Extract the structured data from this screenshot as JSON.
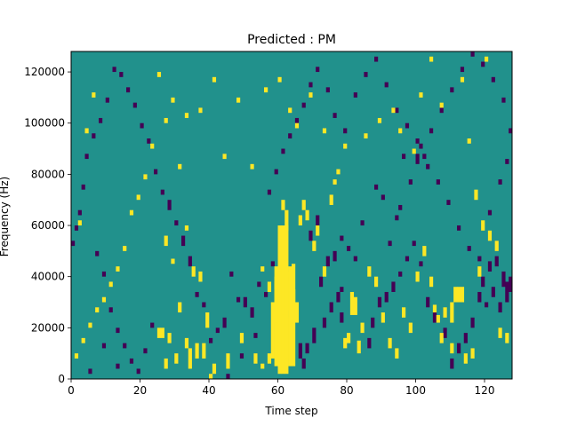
{
  "chart_data": {
    "type": "heatmap",
    "title": "Predicted : PM",
    "xlabel": "Time step",
    "ylabel": "Frequency (Hz)",
    "xlim": [
      0,
      128
    ],
    "ylim": [
      0,
      128000
    ],
    "x_ticks": [
      0,
      20,
      40,
      60,
      80,
      100,
      120
    ],
    "y_ticks": [
      0,
      20000,
      40000,
      60000,
      80000,
      100000,
      120000
    ],
    "n_time_steps": 128,
    "n_freq_bins": 128,
    "values_note": "three-level spectrogram: -1 (dark purple), 0 (teal background), 1 (yellow)",
    "colors": {
      "low": "#440154",
      "mid": "#21918c",
      "high": "#fde725"
    },
    "cells": {
      "high": [
        [
          60,
          2,
          60
        ],
        [
          61,
          2,
          60
        ],
        [
          62,
          2,
          60
        ],
        [
          59,
          5,
          44
        ],
        [
          63,
          5,
          42
        ],
        [
          64,
          5,
          35
        ],
        [
          58,
          8,
          30
        ],
        [
          62,
          8,
          24
        ],
        [
          59,
          22,
          38
        ],
        [
          61,
          25,
          48
        ],
        [
          63,
          27,
          44
        ],
        [
          65,
          22,
          30
        ],
        [
          64,
          30,
          45
        ],
        [
          60,
          42,
          52
        ],
        [
          62,
          58,
          66
        ],
        [
          61,
          66,
          70
        ],
        [
          59,
          35,
          40
        ],
        [
          111,
          30,
          36
        ],
        [
          112,
          30,
          36
        ],
        [
          113,
          30,
          36
        ],
        [
          110,
          22,
          30
        ],
        [
          108,
          24,
          28
        ],
        [
          106,
          22,
          25
        ],
        [
          105,
          26,
          29
        ],
        [
          81,
          25,
          34
        ],
        [
          82,
          25,
          32
        ],
        [
          80,
          14,
          18
        ],
        [
          84,
          18,
          22
        ],
        [
          83,
          10,
          15
        ],
        [
          79,
          12,
          16
        ],
        [
          25,
          16,
          20
        ],
        [
          26,
          16,
          20
        ],
        [
          28,
          14,
          18
        ],
        [
          27,
          4,
          8
        ],
        [
          30,
          6,
          10
        ],
        [
          33,
          12,
          16
        ],
        [
          34,
          4,
          12
        ],
        [
          36,
          8,
          14
        ],
        [
          31,
          26,
          30
        ],
        [
          38,
          8,
          14
        ],
        [
          39,
          20,
          26
        ],
        [
          35,
          40,
          44
        ],
        [
          37,
          38,
          42
        ],
        [
          29,
          45,
          47
        ],
        [
          33,
          58,
          60
        ],
        [
          27,
          52,
          56
        ],
        [
          40,
          0,
          2
        ],
        [
          41,
          2,
          6
        ],
        [
          45,
          4,
          10
        ],
        [
          49,
          14,
          18
        ],
        [
          53,
          6,
          10
        ],
        [
          55,
          42,
          44
        ],
        [
          57,
          34,
          38
        ],
        [
          55,
          4,
          6
        ],
        [
          57,
          6,
          10
        ],
        [
          66,
          60,
          64
        ],
        [
          67,
          66,
          70
        ],
        [
          68,
          62,
          66
        ],
        [
          70,
          50,
          54
        ],
        [
          71,
          56,
          60
        ],
        [
          73,
          40,
          44
        ],
        [
          75,
          68,
          72
        ],
        [
          77,
          80,
          82
        ],
        [
          86,
          40,
          44
        ],
        [
          88,
          36,
          40
        ],
        [
          90,
          22,
          26
        ],
        [
          92,
          12,
          16
        ],
        [
          94,
          8,
          12
        ],
        [
          96,
          24,
          28
        ],
        [
          98,
          18,
          22
        ],
        [
          100,
          38,
          42
        ],
        [
          102,
          48,
          52
        ],
        [
          104,
          36,
          40
        ],
        [
          107,
          14,
          18
        ],
        [
          110,
          10,
          14
        ],
        [
          114,
          6,
          10
        ],
        [
          116,
          8,
          12
        ],
        [
          118,
          40,
          44
        ],
        [
          119,
          58,
          62
        ],
        [
          121,
          54,
          58
        ],
        [
          123,
          50,
          54
        ],
        [
          124,
          16,
          20
        ],
        [
          126,
          14,
          18
        ],
        [
          117,
          70,
          74
        ],
        [
          115,
          92,
          94
        ],
        [
          113,
          116,
          118
        ],
        [
          120,
          124,
          126
        ],
        [
          104,
          124,
          126
        ],
        [
          107,
          106,
          108
        ],
        [
          101,
          110,
          112
        ],
        [
          99,
          88,
          90
        ],
        [
          95,
          96,
          98
        ],
        [
          93,
          104,
          106
        ],
        [
          89,
          100,
          102
        ],
        [
          85,
          94,
          96
        ],
        [
          79,
          90,
          92
        ],
        [
          76,
          76,
          78
        ],
        [
          73,
          96,
          98
        ],
        [
          69,
          110,
          112
        ],
        [
          65,
          98,
          100
        ],
        [
          63,
          104,
          106
        ],
        [
          60,
          116,
          118
        ],
        [
          56,
          112,
          114
        ],
        [
          52,
          82,
          84
        ],
        [
          48,
          108,
          110
        ],
        [
          44,
          86,
          88
        ],
        [
          41,
          116,
          118
        ],
        [
          37,
          104,
          106
        ],
        [
          33,
          102,
          104
        ],
        [
          31,
          82,
          84
        ],
        [
          29,
          108,
          110
        ],
        [
          27,
          100,
          102
        ],
        [
          25,
          118,
          120
        ],
        [
          23,
          90,
          92
        ],
        [
          21,
          78,
          80
        ],
        [
          19,
          70,
          72
        ],
        [
          17,
          64,
          66
        ],
        [
          15,
          50,
          52
        ],
        [
          13,
          42,
          44
        ],
        [
          11,
          36,
          38
        ],
        [
          9,
          30,
          32
        ],
        [
          7,
          26,
          28
        ],
        [
          5,
          20,
          22
        ],
        [
          3,
          14,
          16
        ],
        [
          1,
          8,
          10
        ],
        [
          6,
          110,
          112
        ],
        [
          4,
          96,
          98
        ],
        [
          2,
          60,
          62
        ]
      ],
      "low": [
        [
          66,
          8,
          14
        ],
        [
          67,
          4,
          8
        ],
        [
          68,
          10,
          14
        ],
        [
          70,
          14,
          20
        ],
        [
          73,
          20,
          24
        ],
        [
          75,
          26,
          30
        ],
        [
          77,
          30,
          34
        ],
        [
          78,
          22,
          26
        ],
        [
          72,
          36,
          40
        ],
        [
          74,
          44,
          48
        ],
        [
          76,
          46,
          50
        ],
        [
          78,
          54,
          56
        ],
        [
          69,
          54,
          58
        ],
        [
          71,
          60,
          64
        ],
        [
          86,
          12,
          16
        ],
        [
          87,
          20,
          24
        ],
        [
          89,
          28,
          32
        ],
        [
          91,
          30,
          34
        ],
        [
          93,
          34,
          38
        ],
        [
          95,
          40,
          42
        ],
        [
          97,
          46,
          48
        ],
        [
          99,
          52,
          54
        ],
        [
          101,
          44,
          46
        ],
        [
          103,
          28,
          32
        ],
        [
          105,
          22,
          26
        ],
        [
          108,
          16,
          20
        ],
        [
          110,
          4,
          8
        ],
        [
          112,
          10,
          14
        ],
        [
          114,
          14,
          18
        ],
        [
          116,
          20,
          24
        ],
        [
          118,
          30,
          34
        ],
        [
          120,
          28,
          30
        ],
        [
          122,
          32,
          36
        ],
        [
          124,
          26,
          30
        ],
        [
          125,
          36,
          42
        ],
        [
          126,
          30,
          38
        ],
        [
          127,
          34,
          40
        ],
        [
          123,
          44,
          48
        ],
        [
          121,
          42,
          46
        ],
        [
          119,
          36,
          40
        ],
        [
          100,
          84,
          88
        ],
        [
          101,
          90,
          92
        ],
        [
          96,
          86,
          88
        ],
        [
          94,
          62,
          64
        ],
        [
          92,
          52,
          54
        ],
        [
          90,
          70,
          72
        ],
        [
          88,
          74,
          76
        ],
        [
          84,
          60,
          62
        ],
        [
          82,
          46,
          48
        ],
        [
          80,
          50,
          52
        ],
        [
          78,
          34,
          36
        ],
        [
          62,
          38,
          40
        ],
        [
          58,
          44,
          46
        ],
        [
          56,
          32,
          34
        ],
        [
          54,
          36,
          38
        ],
        [
          52,
          24,
          28
        ],
        [
          50,
          28,
          32
        ],
        [
          48,
          30,
          32
        ],
        [
          46,
          40,
          42
        ],
        [
          44,
          20,
          24
        ],
        [
          42,
          18,
          20
        ],
        [
          40,
          14,
          16
        ],
        [
          38,
          28,
          30
        ],
        [
          36,
          32,
          34
        ],
        [
          34,
          44,
          48
        ],
        [
          32,
          52,
          56
        ],
        [
          30,
          60,
          62
        ],
        [
          28,
          66,
          70
        ],
        [
          26,
          72,
          74
        ],
        [
          24,
          80,
          82
        ],
        [
          22,
          92,
          94
        ],
        [
          20,
          98,
          100
        ],
        [
          18,
          106,
          108
        ],
        [
          16,
          112,
          114
        ],
        [
          14,
          118,
          120
        ],
        [
          12,
          120,
          122
        ],
        [
          10,
          108,
          110
        ],
        [
          8,
          100,
          102
        ],
        [
          6,
          94,
          96
        ],
        [
          4,
          86,
          88
        ],
        [
          3,
          74,
          76
        ],
        [
          2,
          64,
          66
        ],
        [
          1,
          58,
          60
        ],
        [
          0,
          52,
          54
        ],
        [
          7,
          48,
          50
        ],
        [
          9,
          40,
          42
        ],
        [
          11,
          26,
          28
        ],
        [
          13,
          18,
          20
        ],
        [
          15,
          12,
          14
        ],
        [
          17,
          6,
          8
        ],
        [
          19,
          2,
          4
        ],
        [
          21,
          10,
          12
        ],
        [
          23,
          20,
          22
        ],
        [
          5,
          2,
          4
        ],
        [
          9,
          12,
          14
        ],
        [
          13,
          4,
          6
        ],
        [
          45,
          0,
          2
        ],
        [
          49,
          8,
          10
        ],
        [
          53,
          16,
          18
        ],
        [
          57,
          72,
          74
        ],
        [
          59,
          80,
          82
        ],
        [
          61,
          88,
          90
        ],
        [
          63,
          94,
          96
        ],
        [
          65,
          100,
          102
        ],
        [
          67,
          106,
          108
        ],
        [
          69,
          114,
          116
        ],
        [
          71,
          120,
          122
        ],
        [
          74,
          112,
          114
        ],
        [
          76,
          102,
          104
        ],
        [
          79,
          96,
          98
        ],
        [
          82,
          110,
          112
        ],
        [
          85,
          118,
          120
        ],
        [
          88,
          124,
          126
        ],
        [
          91,
          114,
          116
        ],
        [
          94,
          104,
          106
        ],
        [
          97,
          98,
          100
        ],
        [
          100,
          92,
          94
        ],
        [
          103,
          82,
          84
        ],
        [
          106,
          76,
          78
        ],
        [
          109,
          68,
          70
        ],
        [
          112,
          58,
          60
        ],
        [
          115,
          50,
          52
        ],
        [
          118,
          46,
          48
        ],
        [
          121,
          64,
          66
        ],
        [
          124,
          76,
          78
        ],
        [
          126,
          84,
          86
        ],
        [
          127,
          96,
          98
        ],
        [
          125,
          108,
          110
        ],
        [
          122,
          116,
          118
        ],
        [
          119,
          122,
          124
        ],
        [
          116,
          126,
          128
        ],
        [
          113,
          120,
          122
        ],
        [
          110,
          112,
          114
        ],
        [
          107,
          104,
          106
        ],
        [
          104,
          96,
          98
        ],
        [
          102,
          86,
          88
        ],
        [
          98,
          76,
          78
        ],
        [
          95,
          66,
          68
        ]
      ]
    }
  }
}
